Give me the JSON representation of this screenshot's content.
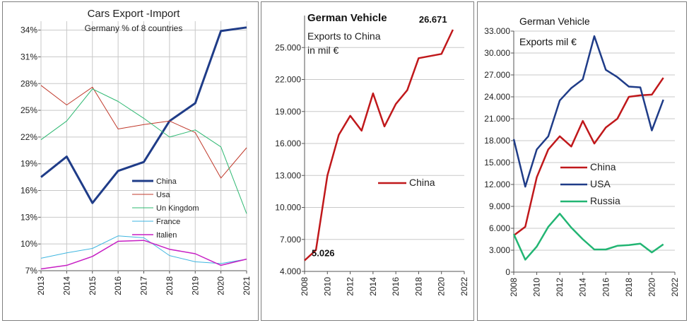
{
  "chart_data": [
    {
      "type": "line",
      "title": "Cars Export -Import",
      "subtitle": "Germany % of 8 countries",
      "x": [
        2013,
        2014,
        2015,
        2016,
        2017,
        2018,
        2019,
        2020,
        2021
      ],
      "xlim": [
        2013,
        2021
      ],
      "ylim": [
        7,
        35
      ],
      "yticks": [
        "34%",
        "31%",
        "28%",
        "25%",
        "22%",
        "19%",
        "16%",
        "13%",
        "10%",
        "7%"
      ],
      "ytick_values": [
        34,
        31,
        28,
        25,
        22,
        19,
        16,
        13,
        10,
        7
      ],
      "grid": true,
      "legend": "center-right",
      "series": [
        {
          "name": "China",
          "color": "#1f3c88",
          "values": [
            17.5,
            19.8,
            14.6,
            18.2,
            19.2,
            23.8,
            25.8,
            33.9,
            34.3
          ]
        },
        {
          "name": "Usa",
          "color": "#c0392b",
          "values": [
            27.8,
            25.6,
            27.6,
            22.9,
            23.4,
            23.8,
            22.5,
            17.4,
            20.8
          ]
        },
        {
          "name": "Un Kingdom",
          "color": "#2eb872",
          "values": [
            21.7,
            23.8,
            27.4,
            26.0,
            24.1,
            22.0,
            22.8,
            20.9,
            13.4
          ]
        },
        {
          "name": "France",
          "color": "#3fb6e0",
          "values": [
            8.4,
            9.0,
            9.5,
            10.9,
            10.7,
            8.7,
            8.0,
            7.8,
            8.3
          ]
        },
        {
          "name": "Italien",
          "color": "#c71fc4",
          "values": [
            7.2,
            7.6,
            8.6,
            10.3,
            10.4,
            9.4,
            8.9,
            7.6,
            8.3
          ]
        }
      ]
    },
    {
      "type": "line",
      "title": "German Vehicle",
      "subtitle_lines": [
        "Exports to China",
        "in mil €"
      ],
      "x": [
        2008,
        2009,
        2010,
        2011,
        2012,
        2013,
        2014,
        2015,
        2016,
        2017,
        2018,
        2019,
        2020,
        2021
      ],
      "xlim": [
        2008,
        2022
      ],
      "xticks": [
        "2008",
        "2010",
        "2012",
        "2014",
        "2016",
        "2018",
        "2020",
        "2022"
      ],
      "ylim": [
        4000,
        28000
      ],
      "yticks": [
        "4.000",
        "7.000",
        "10.000",
        "13.000",
        "16.000",
        "19.000",
        "22.000",
        "25.000"
      ],
      "ytick_values": [
        4000,
        7000,
        10000,
        13000,
        16000,
        19000,
        22000,
        25000
      ],
      "grid": true,
      "legend": "center-right",
      "annotations": [
        "5.026",
        "26.671"
      ],
      "series": [
        {
          "name": "China",
          "color": "#c0181b",
          "values": [
            5026,
            6000,
            13000,
            16800,
            18600,
            17200,
            20700,
            17600,
            19700,
            21000,
            24000,
            24200,
            24400,
            26671
          ]
        }
      ]
    },
    {
      "type": "line",
      "title": "German Vehicle",
      "subtitle": "Exports mil €",
      "x": [
        2008,
        2009,
        2010,
        2011,
        2012,
        2013,
        2014,
        2015,
        2016,
        2017,
        2018,
        2019,
        2020,
        2021
      ],
      "xlim": [
        2008,
        2022
      ],
      "xticks": [
        "2008",
        "2010",
        "2012",
        "2014",
        "2016",
        "2018",
        "2020",
        "2022"
      ],
      "ylim": [
        0,
        33000
      ],
      "yticks": [
        "33.000",
        "30.000",
        "27.000",
        "24.000",
        "21.000",
        "18.000",
        "15.000",
        "12.000",
        "9.000",
        "6.000",
        "3.000",
        "0"
      ],
      "ytick_values": [
        33000,
        30000,
        27000,
        24000,
        21000,
        18000,
        15000,
        12000,
        9000,
        6000,
        3000,
        0
      ],
      "grid": true,
      "legend": "center-right",
      "series": [
        {
          "name": "China",
          "color": "#c0181b",
          "values": [
            5026,
            6200,
            13000,
            16800,
            18600,
            17200,
            20700,
            17600,
            19800,
            21000,
            24000,
            24200,
            24300,
            26600
          ]
        },
        {
          "name": "USA",
          "color": "#1f3c88",
          "values": [
            18200,
            11700,
            16800,
            18600,
            23500,
            25200,
            26400,
            32300,
            27700,
            26700,
            25400,
            25300,
            19400,
            23600
          ]
        },
        {
          "name": "Russia",
          "color": "#22b573",
          "values": [
            5200,
            1700,
            3500,
            6200,
            8000,
            6100,
            4500,
            3100,
            3100,
            3600,
            3700,
            3900,
            2700,
            3800
          ]
        }
      ]
    }
  ]
}
